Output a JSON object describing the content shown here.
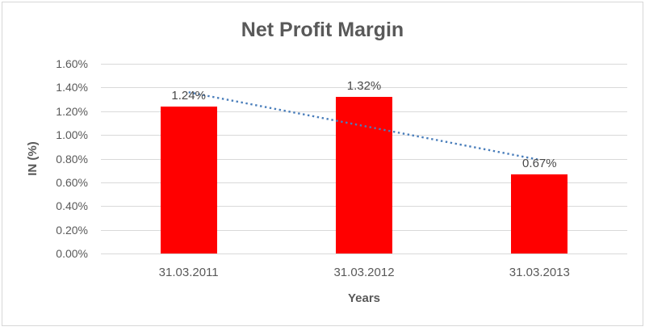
{
  "chart_data": {
    "type": "bar",
    "title": "Net Profit Margin",
    "categories": [
      "31.03.2011",
      "31.03.2012",
      "31.03.2013"
    ],
    "values": [
      1.24,
      1.32,
      0.67
    ],
    "data_labels": [
      "1.24%",
      "1.32%",
      "0.67%"
    ],
    "xlabel": "Years",
    "ylabel": "IN (%)",
    "ylim": [
      0,
      1.6
    ],
    "ytick_step": 0.2,
    "ytick_labels": [
      "0.00%",
      "0.20%",
      "0.40%",
      "0.60%",
      "0.80%",
      "1.00%",
      "1.20%",
      "1.40%",
      "1.60%"
    ],
    "grid": true,
    "legend": "none",
    "colors": {
      "bar": "#ff0000",
      "trendline": "#4a7ebb",
      "gridline": "#d9d9d9",
      "text": "#595959"
    },
    "trendline": {
      "type": "linear",
      "style": "dotted",
      "start_value": 1.36,
      "end_value": 0.79
    }
  }
}
